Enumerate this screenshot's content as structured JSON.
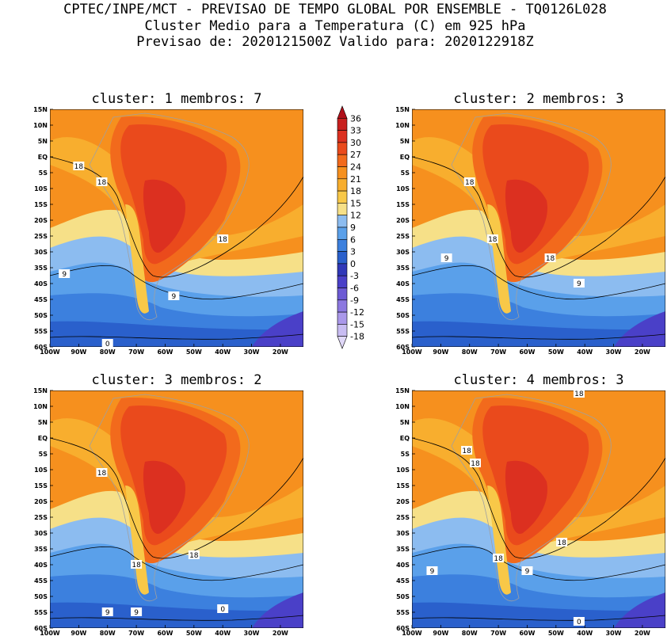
{
  "header": {
    "line1": "CPTEC/INPE/MCT - PREVISAO DE TEMPO GLOBAL POR ENSEMBLE - TQ0126L028",
    "line2": "Cluster Medio para a Temperatura (C) em 925 hPa",
    "line3": "Previsao de: 2020121500Z   Valido para: 2020122918Z"
  },
  "panels": [
    {
      "title": "cluster: 1  membros: 7",
      "contour_labels": [
        "18",
        "18",
        "18",
        "9",
        "9",
        "0"
      ]
    },
    {
      "title": "cluster: 2  membros: 3",
      "contour_labels": [
        "18",
        "18",
        "18",
        "9",
        "9"
      ]
    },
    {
      "title": "cluster: 3  membros: 2",
      "contour_labels": [
        "18",
        "18",
        "18",
        "9",
        "9",
        "0"
      ]
    },
    {
      "title": "cluster: 4  membros: 3",
      "contour_labels": [
        "18",
        "18",
        "18",
        "18",
        "18",
        "9",
        "9",
        "0"
      ]
    }
  ],
  "axes": {
    "lat_ticks": [
      "15N",
      "10N",
      "5N",
      "EQ",
      "5S",
      "10S",
      "15S",
      "20S",
      "25S",
      "30S",
      "35S",
      "40S",
      "45S",
      "50S",
      "55S",
      "60S"
    ],
    "lon_ticks": [
      "100W",
      "90W",
      "80W",
      "70W",
      "60W",
      "50W",
      "40W",
      "30W",
      "20W"
    ],
    "lon_range": [
      -100,
      -12
    ],
    "lat_range": [
      -60,
      15
    ]
  },
  "colorbar": {
    "labels": [
      "36",
      "33",
      "30",
      "27",
      "24",
      "21",
      "18",
      "15",
      "12",
      "9",
      "6",
      "3",
      "0",
      "-3",
      "-6",
      "-9",
      "-12",
      "-15",
      "-18"
    ],
    "colors": [
      "#b0101a",
      "#c8201e",
      "#dc3020",
      "#ea4a1c",
      "#f26a1c",
      "#f6901e",
      "#f8ae2e",
      "#f8c848",
      "#f6e088",
      "#8cbcf0",
      "#5aa0ea",
      "#3c80de",
      "#2a60cc",
      "#3038b8",
      "#4a40c8",
      "#6c5ad4",
      "#8c78e0",
      "#aa98ea",
      "#c8bcf2",
      "#e0d8f8"
    ]
  }
}
